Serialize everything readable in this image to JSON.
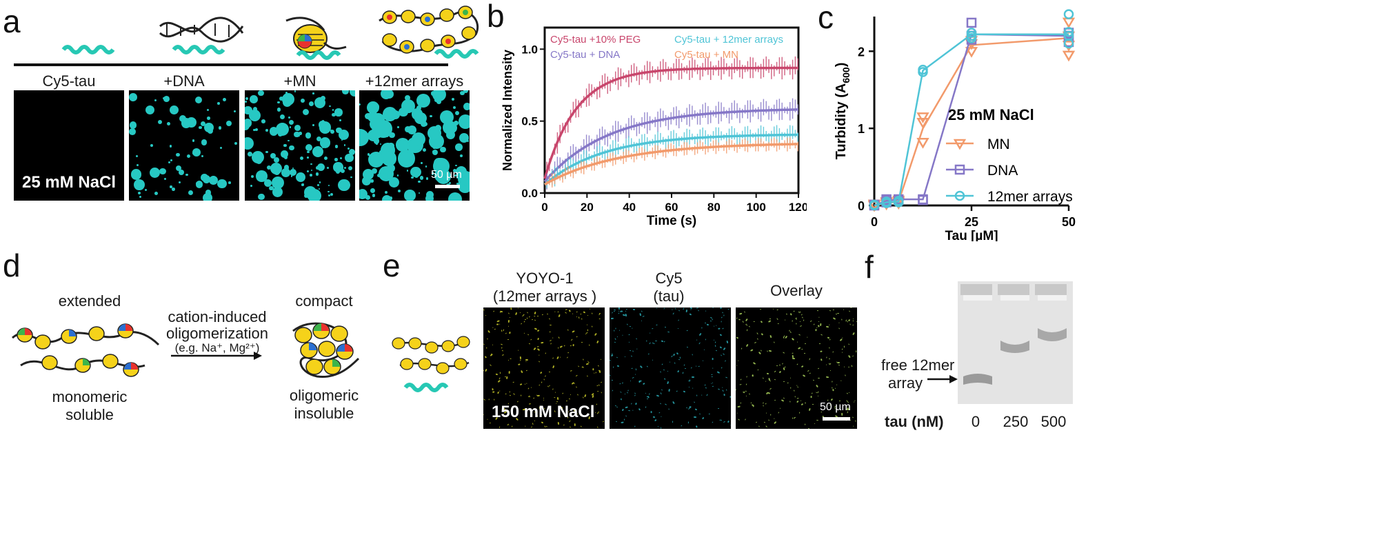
{
  "panels": {
    "a": {
      "label": "a",
      "columns": [
        "Cy5-tau",
        "+DNA",
        "+MN",
        "+12mer arrays"
      ],
      "salt_label": "25 mM NaCl",
      "scale_label": "50 µm",
      "droplet_color": "#27c8c3"
    },
    "b": {
      "label": "b",
      "legend": [
        "Cy5-tau +10% PEG",
        "Cy5-tau + DNA",
        "Cy5-tau + 12mer arrays",
        "Cy5-tau + MN"
      ]
    },
    "c": {
      "label": "c",
      "legend_title": "25 mM NaCl",
      "legend": [
        "MN",
        "DNA",
        "12mer arrays"
      ]
    },
    "d": {
      "label": "d",
      "left_top": "extended",
      "left_bottom_1": "monomeric",
      "left_bottom_2": "soluble",
      "arrow_line1": "cation-induced",
      "arrow_line2": "oligomerization",
      "arrow_line3": "(e.g. Na⁺, Mg²⁺)",
      "right_top": "compact",
      "right_bottom_1": "oligomeric",
      "right_bottom_2": "insoluble"
    },
    "e": {
      "label": "e",
      "col1_line1": "YOYO-1",
      "col1_line2": "(12mer arrays )",
      "col2_line1": "Cy5",
      "col2_line2": "(tau)",
      "col3": "Overlay",
      "salt_label": "150 mM NaCl",
      "scale_label": "50 µm"
    },
    "f": {
      "label": "f",
      "arrow_line1": "free 12mer",
      "arrow_line2": "array",
      "tau_label": "tau (nM)",
      "lanes": [
        "0",
        "250",
        "500"
      ]
    }
  },
  "chart_data": [
    {
      "type": "line",
      "panel": "b",
      "title": "",
      "xlabel": "Time (s)",
      "ylabel": "Normalized Intensity",
      "xlim": [
        0,
        120
      ],
      "ylim": [
        0,
        1.15
      ],
      "xticks": [
        "0",
        "20",
        "40",
        "60",
        "80",
        "100",
        "120"
      ],
      "yticks": [
        "0.0",
        "0.5",
        "1.0"
      ],
      "series": [
        {
          "name": "Cy5-tau +10% PEG",
          "color": "#c8466c",
          "plateau": 0.87,
          "start": 0.1,
          "tau": 15,
          "err": 0.08
        },
        {
          "name": "Cy5-tau + DNA",
          "color": "#8577c7",
          "plateau": 0.59,
          "start": 0.08,
          "tau": 30,
          "err": 0.08
        },
        {
          "name": "Cy5-tau + 12mer arrays",
          "color": "#4fc4d6",
          "plateau": 0.41,
          "start": 0.06,
          "tau": 28,
          "err": 0.07
        },
        {
          "name": "Cy5-tau + MN",
          "color": "#f29a6b",
          "plateau": 0.35,
          "start": 0.06,
          "tau": 35,
          "err": 0.05
        }
      ]
    },
    {
      "type": "line",
      "panel": "c",
      "title": "",
      "xlabel": "Tau [µM]",
      "ylabel": "Turbidity (A600)",
      "ylabel_main": "Turbidity (A",
      "ylabel_sub": "600",
      "ylabel_end": ")",
      "xlim": [
        0,
        50
      ],
      "ylim": [
        0,
        2.45
      ],
      "xticks": [
        "0",
        "25",
        "50"
      ],
      "yticks": [
        "0",
        "1",
        "2"
      ],
      "x": [
        0,
        3.125,
        6.25,
        12.5,
        25,
        50
      ],
      "series": [
        {
          "name": "MN",
          "color": "#f29a6b",
          "marker": "triangle-down",
          "values": [
            0.0,
            0.03,
            0.05,
            1.0,
            2.08,
            2.17
          ],
          "replicates": [
            [
              0,
              0.01,
              0.02
            ],
            [
              0.02,
              0.04,
              0.05
            ],
            [
              0.03,
              0.05,
              0.07
            ],
            [
              0.82,
              1.08,
              1.15
            ],
            [
              2.0,
              2.1,
              2.14
            ],
            [
              1.95,
              2.08,
              2.2,
              2.38
            ]
          ]
        },
        {
          "name": "DNA",
          "color": "#8577c7",
          "marker": "square",
          "values": [
            0.0,
            0.06,
            0.08,
            0.08,
            2.22,
            2.2
          ],
          "replicates": [
            [
              0,
              0.01
            ],
            [
              0.04,
              0.06,
              0.08
            ],
            [
              0.07,
              0.08
            ],
            [
              0.07,
              0.08
            ],
            [
              2.15,
              2.2,
              2.37
            ],
            [
              2.12,
              2.2,
              2.24
            ]
          ]
        },
        {
          "name": "12mer arrays",
          "color": "#4fc4d6",
          "marker": "circle",
          "values": [
            0.0,
            0.04,
            0.05,
            1.75,
            2.22,
            2.22
          ],
          "replicates": [
            [
              0,
              0.01
            ],
            [
              0.03,
              0.05
            ],
            [
              0.04,
              0.06
            ],
            [
              1.73,
              1.76
            ],
            [
              2.17,
              2.2,
              2.24
            ],
            [
              2.1,
              2.2,
              2.25,
              2.48
            ]
          ]
        }
      ]
    }
  ]
}
